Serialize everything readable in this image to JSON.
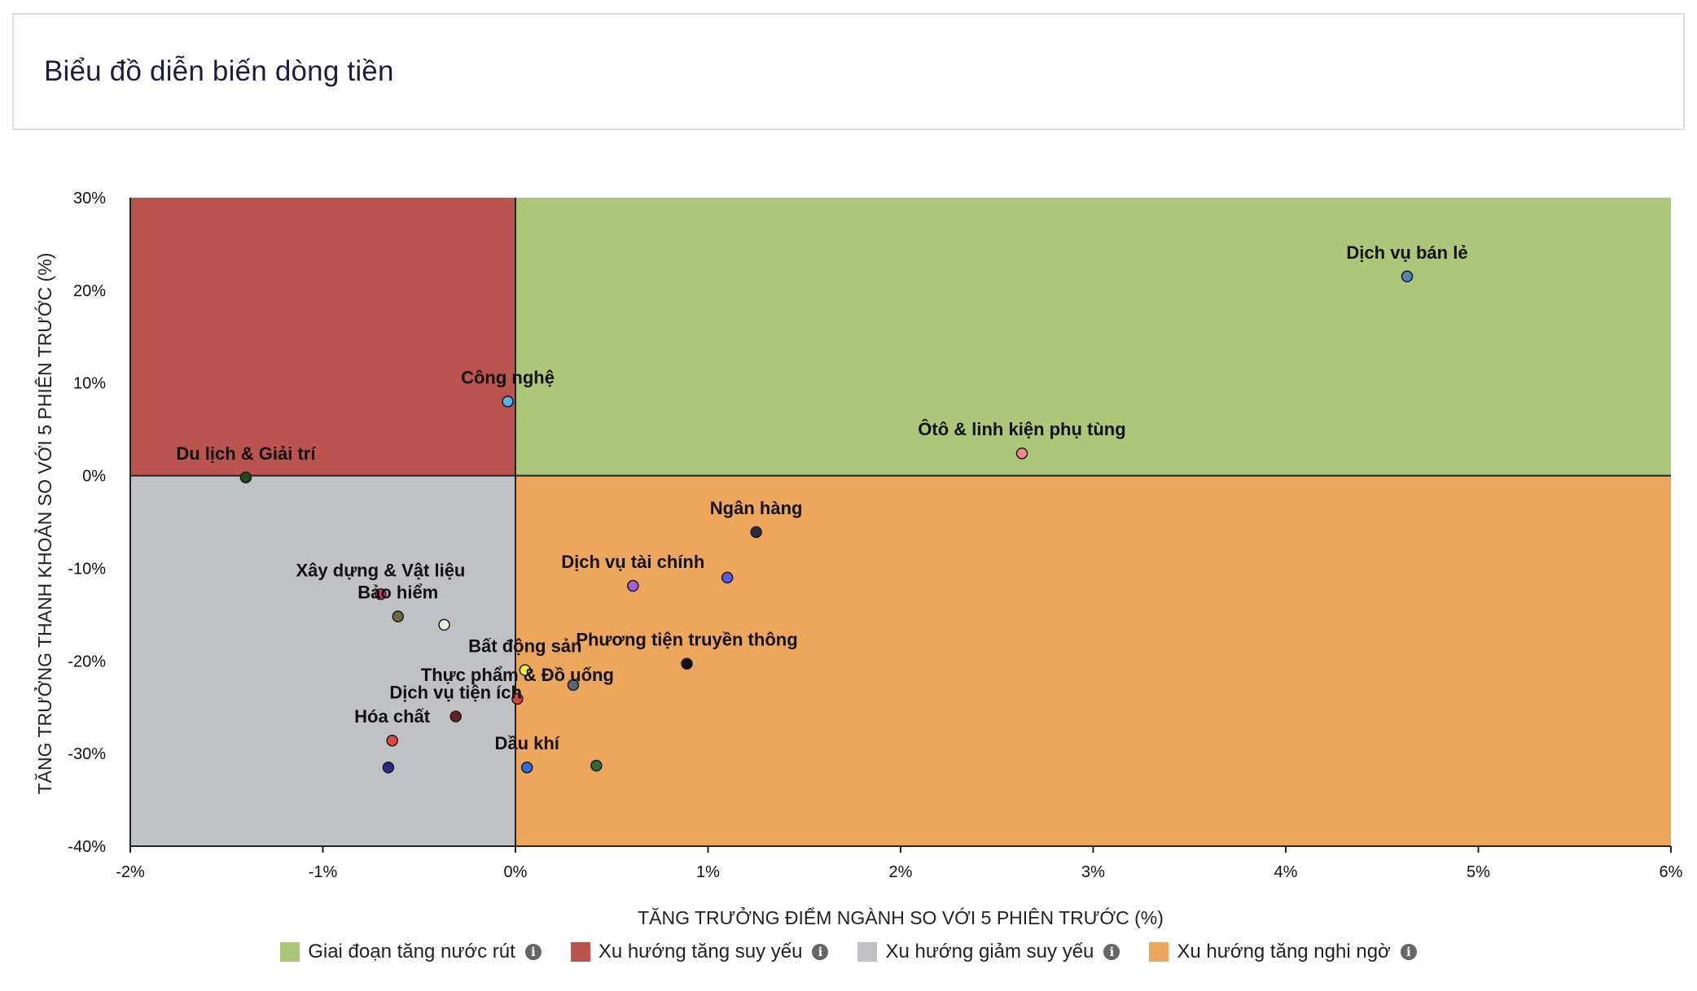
{
  "page": {
    "title": "Biểu đồ diễn biến dòng tiền"
  },
  "legend": [
    {
      "label": "Giai đoạn tăng nước rút",
      "color": "#acc779"
    },
    {
      "label": "Xu hướng tăng suy yếu",
      "color": "#b9544f"
    },
    {
      "label": "Xu hướng giảm suy yếu",
      "color": "#c0c1c5"
    },
    {
      "label": "Xu hướng tăng nghi ngờ",
      "color": "#eda75c"
    }
  ],
  "icons": {
    "info": "info-icon"
  },
  "chart_data": {
    "type": "scatter",
    "xlabel": "TĂNG TRƯỞNG ĐIỂM NGÀNH SO VỚI 5 PHIÊN TRƯỚC (%)",
    "ylabel": "TĂNG TRƯỞNG THANH KHOẢN SO VỚI 5 PHIÊN TRƯỚC (%)",
    "xlim": [
      -2,
      6
    ],
    "ylim": [
      -40,
      30
    ],
    "xticks": [
      "-2%",
      "-1%",
      "0%",
      "1%",
      "2%",
      "3%",
      "4%",
      "5%",
      "6%"
    ],
    "yticks": [
      "30%",
      "20%",
      "10%",
      "0%",
      "-10%",
      "-20%",
      "-30%",
      "-40%"
    ],
    "quadrants": {
      "top_right": "#acc779",
      "top_left": "#b9544f",
      "bottom_left": "#c0c1c5",
      "bottom_right": "#eda75c"
    },
    "points": [
      {
        "label": "Dịch vụ bán lẻ",
        "x": 4.63,
        "y": 21.5,
        "color": "#4f86b8"
      },
      {
        "label": "Công nghệ",
        "x": -0.04,
        "y": 8.0,
        "color": "#5ab0f0"
      },
      {
        "label": "Ôtô & linh kiện phụ tùng",
        "x": 2.63,
        "y": 2.4,
        "color": "#f08a94"
      },
      {
        "label": "Du lịch & Giải trí",
        "x": -1.4,
        "y": -0.2,
        "color": "#1b4d1b"
      },
      {
        "label": "Ngân hàng",
        "x": 1.25,
        "y": -6.1,
        "color": "#2a2a3a"
      },
      {
        "label": "Dịch vụ tài chính",
        "x": 0.61,
        "y": -11.9,
        "color": "#a45ee0"
      },
      {
        "label": "",
        "x": 1.1,
        "y": -11.0,
        "color": "#5a5ae0"
      },
      {
        "label": "Xây dựng & Vật liệu",
        "x": -0.7,
        "y": -12.8,
        "color": "#d0406a"
      },
      {
        "label": "Bảo hiểm",
        "x": -0.61,
        "y": -15.2,
        "color": "#6b6b3e"
      },
      {
        "label": "",
        "x": -0.37,
        "y": -16.1,
        "color": "#e6fcd8"
      },
      {
        "label": "Phương tiện truyền thông",
        "x": 0.89,
        "y": -20.3,
        "color": "#111111"
      },
      {
        "label": "Bất động sản",
        "x": 0.05,
        "y": -21.0,
        "color": "#f5f542"
      },
      {
        "label": "",
        "x": 0.3,
        "y": -22.6,
        "color": "#5b6470"
      },
      {
        "label": "Thực phẩm & Đồ uống",
        "x": 0.01,
        "y": -24.1,
        "color": "#d04545"
      },
      {
        "label": "Dịch vụ tiện ích",
        "x": -0.31,
        "y": -26.0,
        "color": "#6b1e1e"
      },
      {
        "label": "Hóa chất",
        "x": -0.64,
        "y": -28.6,
        "color": "#e04848"
      },
      {
        "label": "",
        "x": -0.66,
        "y": -31.5,
        "color": "#2a2a8a"
      },
      {
        "label": "Dầu khí",
        "x": 0.06,
        "y": -31.5,
        "color": "#3a6ae0"
      },
      {
        "label": "",
        "x": 0.42,
        "y": -31.3,
        "color": "#2e6b2e"
      }
    ]
  }
}
